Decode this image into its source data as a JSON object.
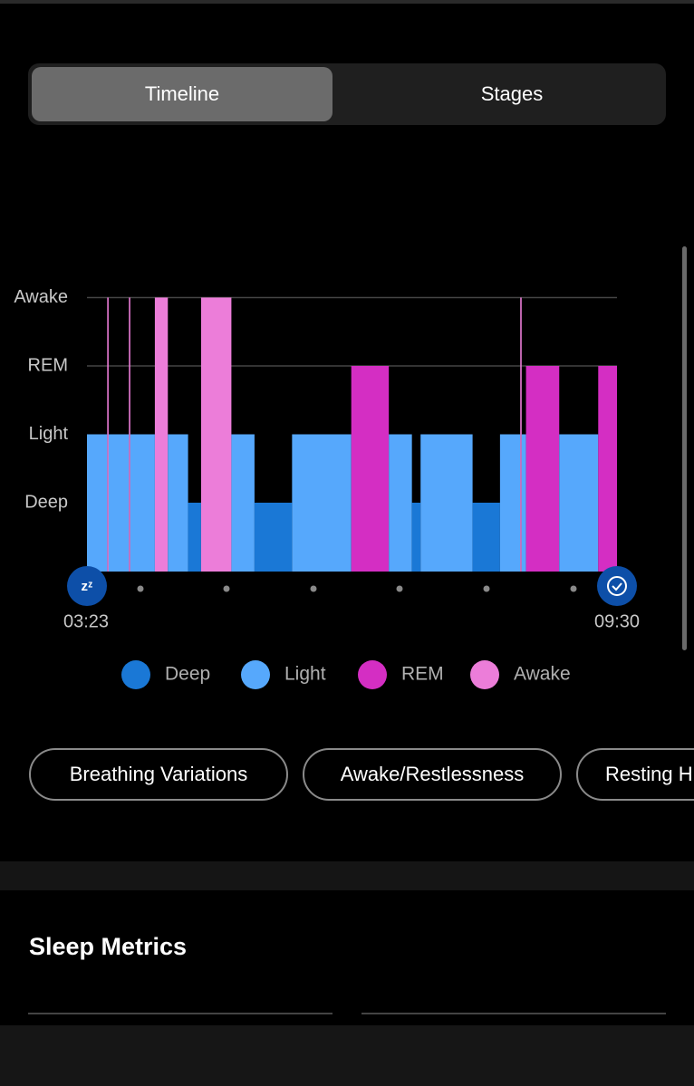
{
  "tabs": [
    "Timeline",
    "Stages"
  ],
  "chart": {
    "type": "sleep-timeline",
    "levels": [
      "Deep",
      "Light",
      "REM",
      "Awake"
    ],
    "colors": [
      "#1a78d6",
      "#56a8fc",
      "#d42ec3",
      "#ec7dd9"
    ],
    "start": "03:23",
    "end": "09:30",
    "segments": [
      {
        "level": 1,
        "minutes": 14
      },
      {
        "level": 3,
        "minutes": 1
      },
      {
        "level": 1,
        "minutes": 14
      },
      {
        "level": 3,
        "minutes": 1
      },
      {
        "level": 1,
        "minutes": 17
      },
      {
        "level": 3,
        "minutes": 9
      },
      {
        "level": 1,
        "minutes": 14
      },
      {
        "level": 0,
        "minutes": 9
      },
      {
        "level": 3,
        "minutes": 21
      },
      {
        "level": 1,
        "minutes": 16
      },
      {
        "level": 0,
        "minutes": 26
      },
      {
        "level": 1,
        "minutes": 41
      },
      {
        "level": 2,
        "minutes": 26
      },
      {
        "level": 1,
        "minutes": 16
      },
      {
        "level": 0,
        "minutes": 6
      },
      {
        "level": 1,
        "minutes": 36
      },
      {
        "level": 0,
        "minutes": 19
      },
      {
        "level": 1,
        "minutes": 14
      },
      {
        "level": 3,
        "minutes": 1
      },
      {
        "level": 1,
        "minutes": 3
      },
      {
        "level": 2,
        "minutes": 23
      },
      {
        "level": 1,
        "minutes": 27
      },
      {
        "level": 2,
        "minutes": 13
      }
    ]
  },
  "chips": [
    "Breathing Variations",
    "Awake/Restlessness",
    "Resting H"
  ],
  "section": {
    "title": "Sleep Metrics"
  }
}
